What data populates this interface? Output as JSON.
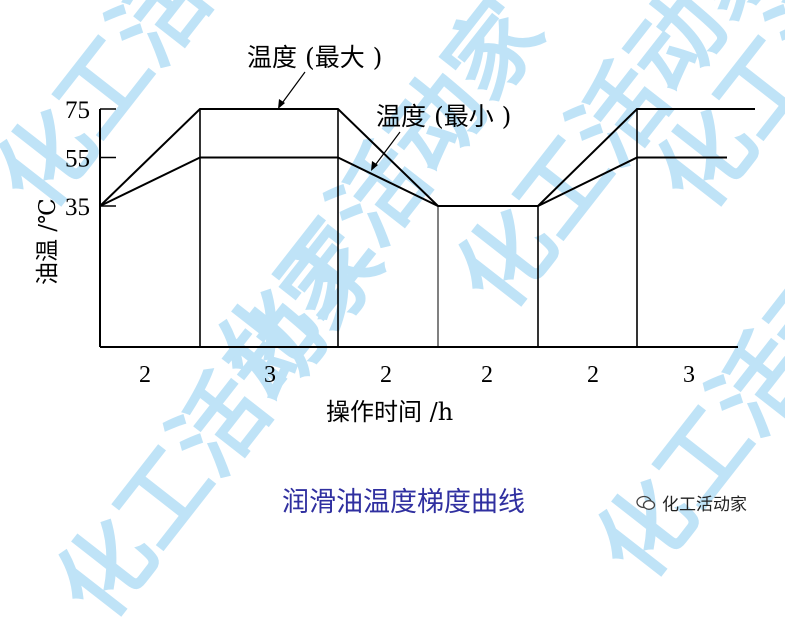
{
  "watermark": "化工活动家",
  "chart_data": {
    "type": "line",
    "title": "润滑油温度梯度曲线",
    "xlabel": "操作时间 /h",
    "ylabel": "油温 /℃",
    "yticks": [
      35,
      55,
      75
    ],
    "segments_h": [
      2,
      3,
      2,
      2,
      2,
      3
    ],
    "segment_labels": [
      "2",
      "3",
      "2",
      "2",
      "2",
      "3"
    ],
    "series": [
      {
        "name": "温度 (最大 )",
        "x": [
          0,
          2,
          5,
          7,
          9,
          11,
          14
        ],
        "y": [
          35,
          75,
          75,
          35,
          35,
          75,
          75
        ]
      },
      {
        "name": "温度 (最小 )",
        "x": [
          0,
          2,
          5,
          7,
          9,
          11,
          14
        ],
        "y": [
          35,
          55,
          55,
          35,
          35,
          55,
          55
        ]
      }
    ],
    "grid": false
  },
  "logo": {
    "text": "化工活动家",
    "icon": "wechat-icon"
  }
}
